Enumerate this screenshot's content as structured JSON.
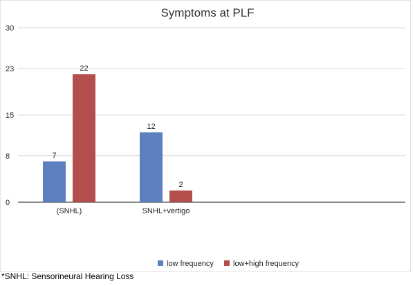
{
  "chart_data": {
    "type": "bar",
    "title": "Symptoms at PLF",
    "categories": [
      "(SNHL)",
      "SNHL+vertigo"
    ],
    "series": [
      {
        "name": "low frequency",
        "values": [
          7,
          12
        ],
        "color": "#5b7fbf"
      },
      {
        "name": "low+high frequency",
        "values": [
          22,
          2
        ],
        "color": "#b34e4d"
      }
    ],
    "yticks": [
      0,
      8,
      15,
      23,
      30
    ],
    "ylim": [
      0,
      30
    ],
    "grid": true,
    "legend": "bottom"
  },
  "footnote": "*SNHL: Sensorineural Hearing Loss"
}
